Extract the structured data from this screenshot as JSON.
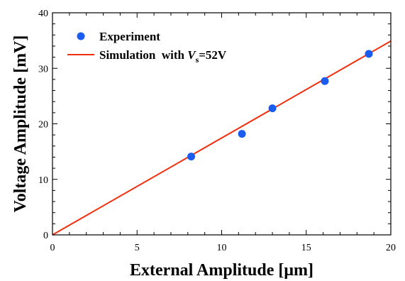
{
  "chart_data": {
    "type": "scatter",
    "title": "",
    "xlabel": "External Amplitude [μm]",
    "ylabel": "Voltage Amplitude [mV]",
    "xlim": [
      0,
      20
    ],
    "ylim": [
      0,
      40
    ],
    "x_ticks": [
      "0",
      "5",
      "10",
      "15",
      "20"
    ],
    "y_ticks": [
      "0",
      "10",
      "20",
      "30",
      "40"
    ],
    "grid": false,
    "legend_position": "top-left",
    "series": [
      {
        "name": "Experiment",
        "type": "scatter",
        "color": "#1a5cf0",
        "points": [
          {
            "x": 8.2,
            "y": 14.1
          },
          {
            "x": 11.2,
            "y": 18.2
          },
          {
            "x": 13.0,
            "y": 22.8
          },
          {
            "x": 16.1,
            "y": 27.7
          },
          {
            "x": 18.7,
            "y": 32.6
          }
        ]
      },
      {
        "name_prefix": "Simulation  with ",
        "name_var": "V",
        "name_sub": "s",
        "name_suffix": "=52V",
        "type": "line",
        "color": "#f03010",
        "points": [
          {
            "x": 0,
            "y": 0
          },
          {
            "x": 20,
            "y": 34.9
          }
        ]
      }
    ]
  }
}
